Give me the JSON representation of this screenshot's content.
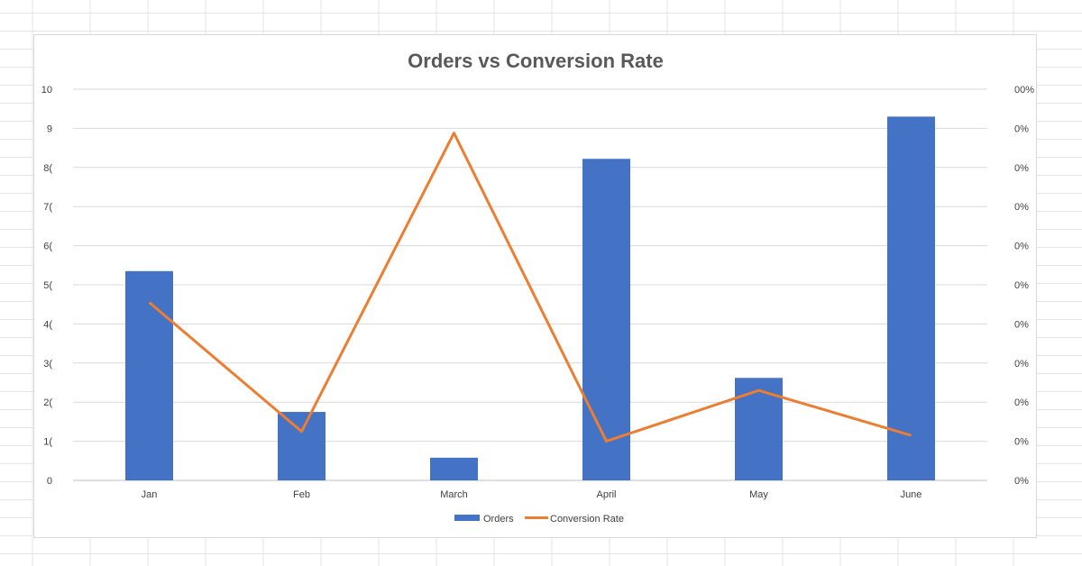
{
  "chart_data": {
    "type": "bar",
    "title": "Orders vs Conversion Rate",
    "categories": [
      "Jan",
      "Feb",
      "March",
      "April",
      "May",
      "June"
    ],
    "series": [
      {
        "name": "Orders",
        "type": "bar",
        "axis": "left",
        "values": [
          5.35,
          1.75,
          0.58,
          8.22,
          2.62,
          9.3
        ]
      },
      {
        "name": "Conversion Rate",
        "type": "line",
        "axis": "right",
        "values": [
          45.5,
          12.5,
          88.8,
          10,
          23,
          11.5
        ]
      }
    ],
    "y_left": {
      "ylim": [
        0,
        10
      ],
      "ticks": [
        "0",
        "1",
        "2",
        "3",
        "4",
        "5",
        "6",
        "7",
        "8",
        "9",
        "10"
      ],
      "tick_labels_visible": [
        "0",
        "1(",
        "2(",
        "3(",
        "4(",
        "5(",
        "6(",
        "7(",
        "8(",
        "9",
        "10"
      ]
    },
    "y_right": {
      "ylim": [
        0,
        100
      ],
      "tick_labels_visible": [
        "0%",
        "0%",
        "0%",
        "0%",
        "0%",
        "0%",
        "0%",
        "0%",
        "0%",
        "0%",
        "00%"
      ]
    },
    "grid": true,
    "legend": "bottom",
    "colors": {
      "bar": "#4472c4",
      "line": "#ed7d31",
      "grid": "#d9d9d9"
    }
  }
}
